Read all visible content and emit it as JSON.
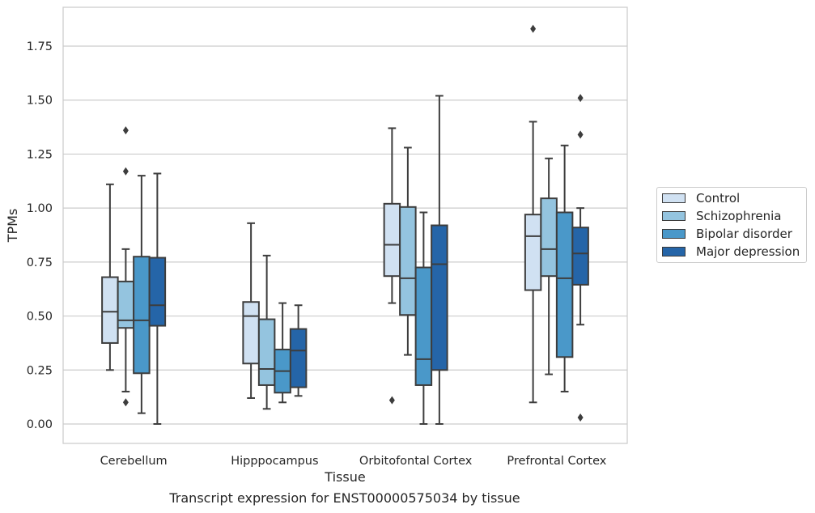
{
  "caption": "Transcript expression for ENST00000575034 by tissue",
  "chart_data": {
    "type": "boxplot",
    "xlabel": "Tissue",
    "ylabel": "TPMs",
    "ylim": [
      -0.09,
      1.93
    ],
    "yticks": [
      "0.00",
      "0.25",
      "0.50",
      "0.75",
      "1.00",
      "1.25",
      "1.50",
      "1.75"
    ],
    "grid": "horizontal",
    "legend_position": "right",
    "categories": [
      "Cerebellum",
      "Hipppocampus",
      "Orbitofontal Cortex",
      "Prefrontal Cortex"
    ],
    "series": [
      {
        "name": "Control",
        "color": "#d0e1f2",
        "boxes": [
          {
            "whisker_low": 0.25,
            "q1": 0.375,
            "median": 0.52,
            "q3": 0.68,
            "whisker_high": 1.11,
            "outliers": []
          },
          {
            "whisker_low": 0.12,
            "q1": 0.28,
            "median": 0.5,
            "q3": 0.565,
            "whisker_high": 0.93,
            "outliers": []
          },
          {
            "whisker_low": 0.56,
            "q1": 0.685,
            "median": 0.83,
            "q3": 1.02,
            "whisker_high": 1.37,
            "outliers": [
              0.11
            ]
          },
          {
            "whisker_low": 0.1,
            "q1": 0.62,
            "median": 0.87,
            "q3": 0.97,
            "whisker_high": 1.4,
            "outliers": [
              1.83
            ]
          }
        ]
      },
      {
        "name": "Schizophrenia",
        "color": "#94c4df",
        "boxes": [
          {
            "whisker_low": 0.15,
            "q1": 0.445,
            "median": 0.48,
            "q3": 0.66,
            "whisker_high": 0.81,
            "outliers": [
              0.1,
              1.17,
              1.36
            ]
          },
          {
            "whisker_low": 0.07,
            "q1": 0.18,
            "median": 0.255,
            "q3": 0.485,
            "whisker_high": 0.78,
            "outliers": []
          },
          {
            "whisker_low": 0.32,
            "q1": 0.505,
            "median": 0.675,
            "q3": 1.005,
            "whisker_high": 1.28,
            "outliers": []
          },
          {
            "whisker_low": 0.23,
            "q1": 0.685,
            "median": 0.81,
            "q3": 1.045,
            "whisker_high": 1.23,
            "outliers": []
          }
        ]
      },
      {
        "name": "Bipolar disorder",
        "color": "#4a98c9",
        "boxes": [
          {
            "whisker_low": 0.05,
            "q1": 0.235,
            "median": 0.48,
            "q3": 0.775,
            "whisker_high": 1.15,
            "outliers": []
          },
          {
            "whisker_low": 0.1,
            "q1": 0.145,
            "median": 0.245,
            "q3": 0.345,
            "whisker_high": 0.56,
            "outliers": []
          },
          {
            "whisker_low": 0.0,
            "q1": 0.18,
            "median": 0.3,
            "q3": 0.725,
            "whisker_high": 0.98,
            "outliers": []
          },
          {
            "whisker_low": 0.15,
            "q1": 0.31,
            "median": 0.675,
            "q3": 0.98,
            "whisker_high": 1.29,
            "outliers": []
          }
        ]
      },
      {
        "name": "Major depression",
        "color": "#2565a8",
        "boxes": [
          {
            "whisker_low": 0.0,
            "q1": 0.455,
            "median": 0.55,
            "q3": 0.77,
            "whisker_high": 1.16,
            "outliers": []
          },
          {
            "whisker_low": 0.13,
            "q1": 0.17,
            "median": 0.34,
            "q3": 0.44,
            "whisker_high": 0.55,
            "outliers": []
          },
          {
            "whisker_low": 0.0,
            "q1": 0.25,
            "median": 0.74,
            "q3": 0.92,
            "whisker_high": 1.52,
            "outliers": []
          },
          {
            "whisker_low": 0.46,
            "q1": 0.645,
            "median": 0.79,
            "q3": 0.91,
            "whisker_high": 1.0,
            "outliers": [
              0.03,
              1.34,
              1.51
            ]
          }
        ]
      }
    ]
  }
}
